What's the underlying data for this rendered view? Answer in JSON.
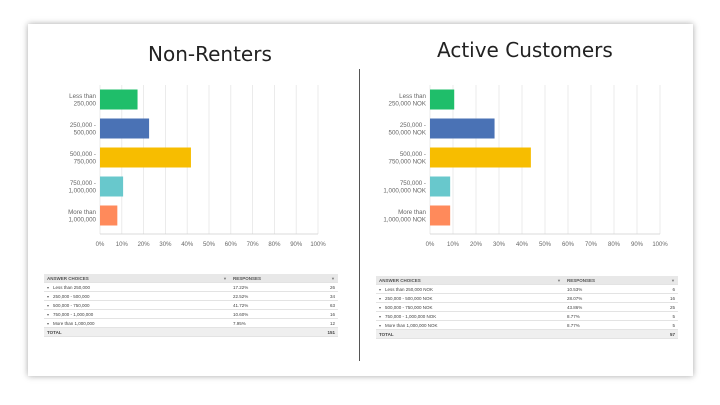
{
  "titles": {
    "left": "Non-Renters",
    "right": "Active Customers"
  },
  "chart_data": [
    {
      "type": "bar",
      "orientation": "horizontal",
      "title": "Non-Renters",
      "categories": [
        "Less than 250,000",
        "250,000 - 500,000",
        "500,000 - 750,000",
        "750,000 - 1,000,000",
        "More than 1,000,000"
      ],
      "values": [
        17.22,
        22.52,
        41.72,
        10.6,
        7.95
      ],
      "colors": [
        "#1fbe6a",
        "#4a72b5",
        "#f7bd00",
        "#68c8cc",
        "#ff8a5b"
      ],
      "xticks": [
        "0%",
        "10%",
        "20%",
        "30%",
        "40%",
        "50%",
        "60%",
        "70%",
        "80%",
        "90%",
        "100%"
      ],
      "xlim": [
        0,
        100
      ],
      "grid": true
    },
    {
      "type": "bar",
      "orientation": "horizontal",
      "title": "Active Customers",
      "categories": [
        "Less than 250,000 NOK",
        "250,000 - 500,000 NOK",
        "500,000 - 750,000 NOK",
        "750,000 - 1,000,000 NOK",
        "More than 1,000,000 NOK"
      ],
      "values": [
        10.53,
        28.07,
        43.86,
        8.77,
        8.77
      ],
      "colors": [
        "#1fbe6a",
        "#4a72b5",
        "#f7bd00",
        "#68c8cc",
        "#ff8a5b"
      ],
      "xticks": [
        "0%",
        "10%",
        "20%",
        "30%",
        "40%",
        "50%",
        "60%",
        "70%",
        "80%",
        "90%",
        "100%"
      ],
      "xlim": [
        0,
        100
      ],
      "grid": true
    }
  ],
  "tables": {
    "left": {
      "header_choices": "ANSWER CHOICES",
      "header_responses": "RESPONSES",
      "rows": [
        {
          "label": "Less than 250,000",
          "pct": "17.22%",
          "count": "26"
        },
        {
          "label": "250,000 - 500,000",
          "pct": "22.52%",
          "count": "34"
        },
        {
          "label": "500,000 - 750,000",
          "pct": "41.72%",
          "count": "63"
        },
        {
          "label": "750,000 - 1,000,000",
          "pct": "10.60%",
          "count": "16"
        },
        {
          "label": "More than 1,000,000",
          "pct": "7.95%",
          "count": "12"
        }
      ],
      "total_label": "TOTAL",
      "total": "151"
    },
    "right": {
      "header_choices": "ANSWER CHOICES",
      "header_responses": "RESPONSES",
      "rows": [
        {
          "label": "Less than 250,000 NOK",
          "pct": "10.53%",
          "count": "6"
        },
        {
          "label": "250,000 - 500,000 NOK",
          "pct": "28.07%",
          "count": "16"
        },
        {
          "label": "500,000 - 750,000 NOK",
          "pct": "43.86%",
          "count": "25"
        },
        {
          "label": "750,000 - 1,000,000 NOK",
          "pct": "8.77%",
          "count": "5"
        },
        {
          "label": "More than 1,000,000 NOK",
          "pct": "8.77%",
          "count": "5"
        }
      ],
      "total_label": "TOTAL",
      "total": "57"
    }
  }
}
